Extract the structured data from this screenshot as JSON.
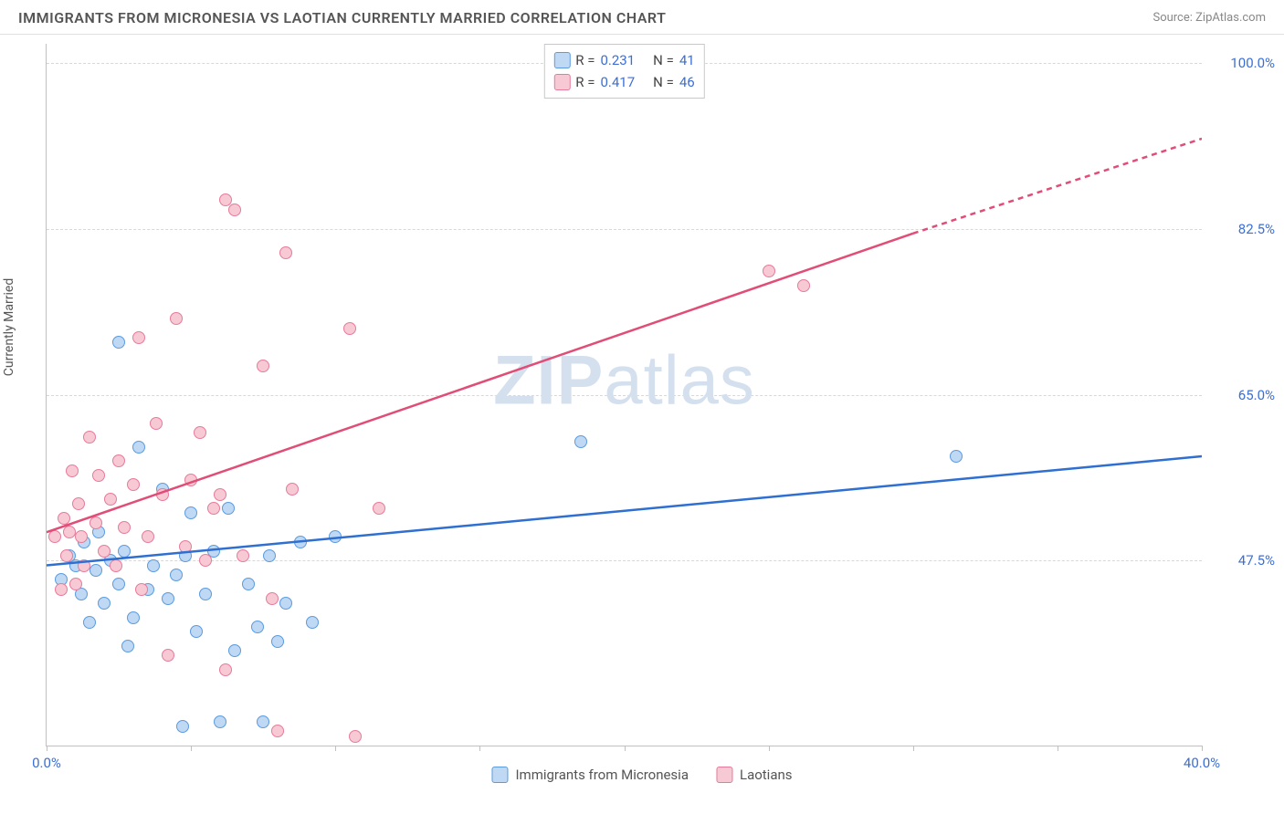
{
  "header": {
    "title": "IMMIGRANTS FROM MICRONESIA VS LAOTIAN CURRENTLY MARRIED CORRELATION CHART",
    "source": "Source: ZipAtlas.com"
  },
  "chart": {
    "type": "scatter",
    "ylabel": "Currently Married",
    "xlim": [
      0.0,
      40.0
    ],
    "ylim": [
      28.0,
      102.0
    ],
    "y_ticks": [
      47.5,
      65.0,
      82.5,
      100.0
    ],
    "y_tick_labels": [
      "47.5%",
      "65.0%",
      "82.5%",
      "100.0%"
    ],
    "x_ticks": [
      0.0,
      5.0,
      10.0,
      15.0,
      20.0,
      25.0,
      30.0,
      35.0,
      40.0
    ],
    "x_labels": {
      "first": "0.0%",
      "last": "40.0%"
    },
    "marker_radius": 7,
    "background_color": "#ffffff",
    "grid_color": "#d8d8d8",
    "axis_color": "#c0c0c0",
    "watermark": "ZIPatlas",
    "series": [
      {
        "name": "Immigrants from Micronesia",
        "key": "series1",
        "fill": "#bfd8f3",
        "stroke": "#5a9be0",
        "line_color": "#2e6fd1",
        "regression": {
          "x1": 0.0,
          "y1": 47.0,
          "x2": 40.0,
          "y2": 58.5,
          "dash": false
        },
        "points": [
          [
            2.5,
            70.5
          ],
          [
            0.5,
            45.5
          ],
          [
            0.8,
            48.0
          ],
          [
            1.0,
            47.0
          ],
          [
            1.2,
            44.0
          ],
          [
            1.3,
            49.5
          ],
          [
            1.5,
            41.0
          ],
          [
            1.7,
            46.5
          ],
          [
            1.8,
            50.5
          ],
          [
            2.0,
            43.0
          ],
          [
            2.2,
            47.5
          ],
          [
            2.5,
            45.0
          ],
          [
            2.7,
            48.5
          ],
          [
            2.8,
            38.5
          ],
          [
            3.0,
            41.5
          ],
          [
            3.2,
            59.5
          ],
          [
            3.5,
            44.5
          ],
          [
            3.7,
            47.0
          ],
          [
            4.0,
            55.0
          ],
          [
            4.2,
            43.5
          ],
          [
            4.5,
            46.0
          ],
          [
            4.7,
            30.0
          ],
          [
            4.8,
            48.0
          ],
          [
            5.0,
            52.5
          ],
          [
            5.2,
            40.0
          ],
          [
            5.5,
            44.0
          ],
          [
            5.8,
            48.5
          ],
          [
            6.0,
            30.5
          ],
          [
            6.3,
            53.0
          ],
          [
            6.5,
            38.0
          ],
          [
            7.0,
            45.0
          ],
          [
            7.3,
            40.5
          ],
          [
            7.5,
            30.5
          ],
          [
            7.7,
            48.0
          ],
          [
            8.0,
            39.0
          ],
          [
            8.3,
            43.0
          ],
          [
            8.8,
            49.5
          ],
          [
            9.2,
            41.0
          ],
          [
            10.0,
            50.0
          ],
          [
            18.5,
            60.0
          ],
          [
            31.5,
            58.5
          ]
        ]
      },
      {
        "name": "Laotians",
        "key": "series2",
        "fill": "#f7c9d4",
        "stroke": "#e77a9a",
        "line_color": "#e04d77",
        "regression": {
          "x1": 0.0,
          "y1": 50.5,
          "x2": 30.0,
          "y2": 82.0,
          "dash": false
        },
        "regression_ext": {
          "x1": 30.0,
          "y1": 82.0,
          "x2": 40.0,
          "y2": 92.0,
          "dash": true
        },
        "points": [
          [
            0.3,
            50.0
          ],
          [
            0.5,
            44.5
          ],
          [
            0.6,
            52.0
          ],
          [
            0.7,
            48.0
          ],
          [
            0.8,
            50.5
          ],
          [
            0.9,
            57.0
          ],
          [
            1.0,
            45.0
          ],
          [
            1.1,
            53.5
          ],
          [
            1.2,
            50.0
          ],
          [
            1.3,
            47.0
          ],
          [
            1.5,
            60.5
          ],
          [
            1.7,
            51.5
          ],
          [
            1.8,
            56.5
          ],
          [
            2.0,
            48.5
          ],
          [
            2.2,
            54.0
          ],
          [
            2.4,
            47.0
          ],
          [
            2.5,
            58.0
          ],
          [
            2.7,
            51.0
          ],
          [
            3.0,
            55.5
          ],
          [
            3.2,
            71.0
          ],
          [
            3.3,
            44.5
          ],
          [
            3.5,
            50.0
          ],
          [
            3.8,
            62.0
          ],
          [
            4.0,
            54.5
          ],
          [
            4.2,
            37.5
          ],
          [
            4.5,
            73.0
          ],
          [
            4.8,
            49.0
          ],
          [
            5.0,
            56.0
          ],
          [
            5.3,
            61.0
          ],
          [
            5.5,
            47.5
          ],
          [
            5.8,
            53.0
          ],
          [
            6.0,
            54.5
          ],
          [
            6.2,
            36.0
          ],
          [
            6.2,
            85.5
          ],
          [
            6.5,
            84.5
          ],
          [
            6.8,
            48.0
          ],
          [
            7.5,
            68.0
          ],
          [
            7.8,
            43.5
          ],
          [
            8.0,
            29.5
          ],
          [
            8.3,
            80.0
          ],
          [
            8.5,
            55.0
          ],
          [
            10.5,
            72.0
          ],
          [
            10.7,
            29.0
          ],
          [
            11.5,
            53.0
          ],
          [
            25.0,
            78.0
          ],
          [
            26.2,
            76.5
          ]
        ]
      }
    ],
    "legend_top": [
      {
        "series": "series1",
        "r_label": "R =",
        "r_value": "0.231",
        "n_label": "N =",
        "n_value": "41"
      },
      {
        "series": "series2",
        "r_label": "R =",
        "r_value": "0.417",
        "n_label": "N =",
        "n_value": "46"
      }
    ],
    "legend_bottom": [
      {
        "series": "series1",
        "label": "Immigrants from Micronesia"
      },
      {
        "series": "series2",
        "label": "Laotians"
      }
    ],
    "tick_label_color": "#3b6fd6"
  }
}
